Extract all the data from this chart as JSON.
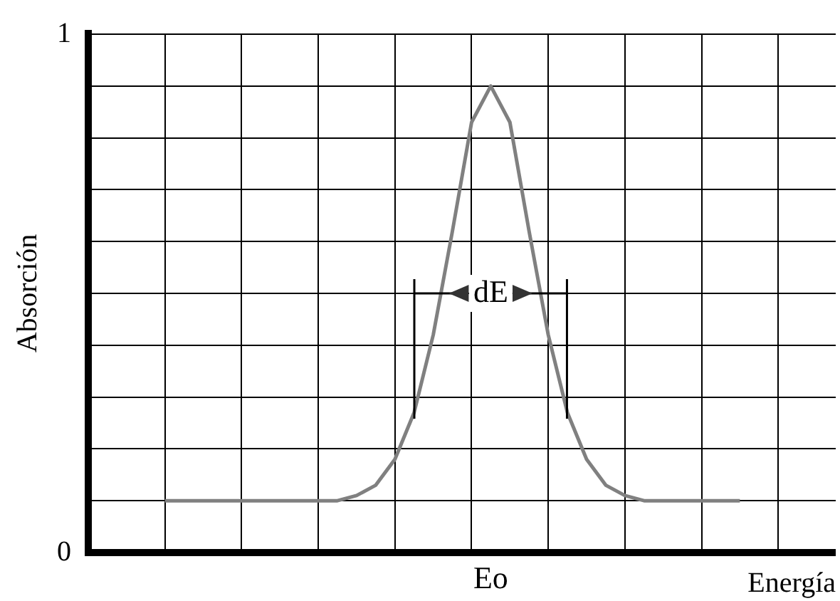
{
  "chart_data": {
    "type": "line",
    "xlabel": "Energía",
    "ylabel": "Absorción",
    "categories": [
      null,
      null,
      null,
      null,
      null,
      null,
      null,
      null,
      null,
      null,
      null,
      null,
      null,
      null,
      null,
      null,
      null,
      null,
      null,
      null,
      null,
      null,
      null,
      null,
      null,
      null,
      null,
      null,
      null,
      null,
      null,
      null,
      null,
      null,
      null,
      null,
      null,
      null,
      null,
      null
    ],
    "series": [
      {
        "color": "#808080",
        "values": [
          null,
          null,
          null,
          null,
          0.1,
          0.1,
          0.1,
          0.1,
          0.1,
          0.1,
          0.1,
          0.1,
          0.1,
          0.1,
          0.11,
          0.13,
          0.18,
          0.27,
          0.42,
          0.62,
          0.83,
          0.9,
          0.83,
          0.62,
          0.42,
          0.27,
          0.18,
          0.13,
          0.11,
          0.1,
          0.1,
          0.1,
          0.1,
          0.1,
          0.1,
          null,
          null,
          null,
          null,
          null
        ]
      }
    ],
    "ylim": [
      0,
      1
    ],
    "yticks": [
      {
        "value": 0,
        "label": "0"
      },
      {
        "value": 0.1,
        "label": null
      },
      {
        "value": 0.2,
        "label": null
      },
      {
        "value": 0.3,
        "label": null
      },
      {
        "value": 0.4,
        "label": null
      },
      {
        "value": 0.5,
        "label": null
      },
      {
        "value": 0.6,
        "label": null
      },
      {
        "value": 0.7,
        "label": null
      },
      {
        "value": 0.8,
        "label": null
      },
      {
        "value": 0.9,
        "label": null
      },
      {
        "value": 1,
        "label": "1"
      }
    ],
    "annotations": [
      {
        "text": "dE",
        "y": 0.5
      },
      "Eo"
    ],
    "grid": true,
    "legend": false,
    "marker": "none",
    "line_style": "solid"
  }
}
